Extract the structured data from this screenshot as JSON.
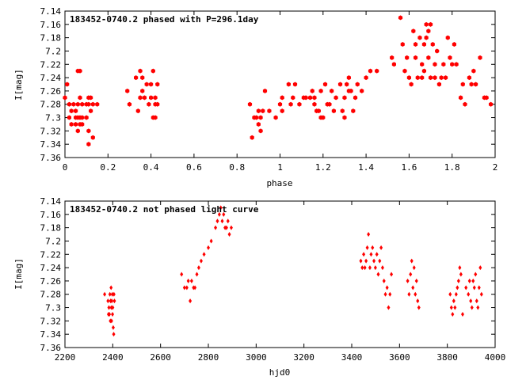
{
  "chart_data": [
    {
      "type": "scatter",
      "title": "183452-0740.2 phased with P=296.1day",
      "xlabel": "phase",
      "ylabel": "I[mag]",
      "xlim": [
        0,
        2
      ],
      "ylim": [
        7.14,
        7.36
      ],
      "y_inverted": true,
      "grid": false,
      "legend": "none",
      "color": "#ff0000",
      "marker": "filled-hexagon",
      "x_ticks": [
        0,
        0.2,
        0.4,
        0.6,
        0.8,
        1,
        1.2,
        1.4,
        1.6,
        1.8,
        2
      ],
      "x_tick_labels": [
        "0",
        "0.2",
        "0.4",
        "0.6",
        "0.8",
        "1",
        "1.2",
        "1.4",
        "1.6",
        "1.8",
        "2"
      ],
      "y_ticks": [
        7.14,
        7.16,
        7.18,
        7.2,
        7.22,
        7.24,
        7.26,
        7.28,
        7.3,
        7.32,
        7.34,
        7.36
      ],
      "y_tick_labels": [
        "7.14",
        "7.16",
        "7.18",
        "7.2",
        "7.22",
        "7.24",
        "7.26",
        "7.28",
        "7.3",
        "7.32",
        "7.34",
        "7.36"
      ],
      "points": [
        [
          0.0,
          7.27
        ],
        [
          0.01,
          7.25
        ],
        [
          0.02,
          7.3
        ],
        [
          0.02,
          7.28
        ],
        [
          0.03,
          7.29
        ],
        [
          0.03,
          7.31
        ],
        [
          0.04,
          7.28
        ],
        [
          0.05,
          7.3
        ],
        [
          0.05,
          7.31
        ],
        [
          0.05,
          7.29
        ],
        [
          0.06,
          7.3
        ],
        [
          0.06,
          7.32
        ],
        [
          0.06,
          7.23
        ],
        [
          0.06,
          7.28
        ],
        [
          0.07,
          7.3
        ],
        [
          0.07,
          7.27
        ],
        [
          0.07,
          7.31
        ],
        [
          0.08,
          7.28
        ],
        [
          0.08,
          7.31
        ],
        [
          0.08,
          7.3
        ],
        [
          0.07,
          7.23
        ],
        [
          0.1,
          7.28
        ],
        [
          0.1,
          7.3
        ],
        [
          0.11,
          7.28
        ],
        [
          0.11,
          7.32
        ],
        [
          0.11,
          7.34
        ],
        [
          0.12,
          7.29
        ],
        [
          0.12,
          7.27
        ],
        [
          0.13,
          7.28
        ],
        [
          0.13,
          7.33
        ],
        [
          0.11,
          7.27
        ],
        [
          0.15,
          7.28
        ],
        [
          0.29,
          7.26
        ],
        [
          0.3,
          7.28
        ],
        [
          0.33,
          7.24
        ],
        [
          0.34,
          7.29
        ],
        [
          0.35,
          7.27
        ],
        [
          0.35,
          7.23
        ],
        [
          0.36,
          7.26
        ],
        [
          0.36,
          7.24
        ],
        [
          0.37,
          7.27
        ],
        [
          0.38,
          7.25
        ],
        [
          0.39,
          7.28
        ],
        [
          0.4,
          7.27
        ],
        [
          0.4,
          7.25
        ],
        [
          0.41,
          7.23
        ],
        [
          0.41,
          7.3
        ],
        [
          0.42,
          7.27
        ],
        [
          0.42,
          7.28
        ],
        [
          0.42,
          7.3
        ],
        [
          0.43,
          7.25
        ],
        [
          0.43,
          7.28
        ],
        [
          0.86,
          7.28
        ],
        [
          0.87,
          7.33
        ],
        [
          0.88,
          7.3
        ],
        [
          0.89,
          7.3
        ],
        [
          0.9,
          7.31
        ],
        [
          0.9,
          7.29
        ],
        [
          0.91,
          7.32
        ],
        [
          0.91,
          7.3
        ],
        [
          0.92,
          7.29
        ],
        [
          0.93,
          7.26
        ],
        [
          0.95,
          7.29
        ],
        [
          0.98,
          7.3
        ],
        [
          1.0,
          7.28
        ],
        [
          1.01,
          7.29
        ],
        [
          1.01,
          7.27
        ],
        [
          1.04,
          7.25
        ],
        [
          1.05,
          7.28
        ],
        [
          1.06,
          7.27
        ],
        [
          1.07,
          7.25
        ],
        [
          1.09,
          7.28
        ],
        [
          1.11,
          7.27
        ],
        [
          1.12,
          7.27
        ],
        [
          1.14,
          7.27
        ],
        [
          1.15,
          7.26
        ],
        [
          1.16,
          7.27
        ],
        [
          1.16,
          7.28
        ],
        [
          1.17,
          7.29
        ],
        [
          1.18,
          7.29
        ],
        [
          1.19,
          7.26
        ],
        [
          1.19,
          7.3
        ],
        [
          1.2,
          7.3
        ],
        [
          1.21,
          7.25
        ],
        [
          1.22,
          7.28
        ],
        [
          1.23,
          7.28
        ],
        [
          1.24,
          7.26
        ],
        [
          1.25,
          7.29
        ],
        [
          1.26,
          7.27
        ],
        [
          1.28,
          7.25
        ],
        [
          1.29,
          7.29
        ],
        [
          1.3,
          7.3
        ],
        [
          1.3,
          7.27
        ],
        [
          1.31,
          7.25
        ],
        [
          1.32,
          7.24
        ],
        [
          1.32,
          7.26
        ],
        [
          1.33,
          7.26
        ],
        [
          1.34,
          7.29
        ],
        [
          1.35,
          7.27
        ],
        [
          1.36,
          7.25
        ],
        [
          1.38,
          7.26
        ],
        [
          1.4,
          7.24
        ],
        [
          1.42,
          7.23
        ],
        [
          1.45,
          7.23
        ],
        [
          1.52,
          7.21
        ],
        [
          1.53,
          7.22
        ],
        [
          1.56,
          7.15
        ],
        [
          1.57,
          7.19
        ],
        [
          1.58,
          7.23
        ],
        [
          1.59,
          7.21
        ],
        [
          1.6,
          7.24
        ],
        [
          1.61,
          7.25
        ],
        [
          1.62,
          7.17
        ],
        [
          1.63,
          7.19
        ],
        [
          1.63,
          7.21
        ],
        [
          1.64,
          7.24
        ],
        [
          1.65,
          7.18
        ],
        [
          1.66,
          7.22
        ],
        [
          1.66,
          7.24
        ],
        [
          1.67,
          7.19
        ],
        [
          1.67,
          7.23
        ],
        [
          1.68,
          7.16
        ],
        [
          1.68,
          7.18
        ],
        [
          1.69,
          7.17
        ],
        [
          1.69,
          7.21
        ],
        [
          1.7,
          7.16
        ],
        [
          1.7,
          7.24
        ],
        [
          1.71,
          7.19
        ],
        [
          1.72,
          7.22
        ],
        [
          1.72,
          7.24
        ],
        [
          1.73,
          7.2
        ],
        [
          1.74,
          7.25
        ],
        [
          1.75,
          7.24
        ],
        [
          1.76,
          7.22
        ],
        [
          1.77,
          7.24
        ],
        [
          1.78,
          7.18
        ],
        [
          1.79,
          7.21
        ],
        [
          1.8,
          7.22
        ],
        [
          1.81,
          7.19
        ],
        [
          1.82,
          7.22
        ],
        [
          1.84,
          7.27
        ],
        [
          1.85,
          7.25
        ],
        [
          1.86,
          7.28
        ],
        [
          1.88,
          7.24
        ],
        [
          1.89,
          7.25
        ],
        [
          1.9,
          7.23
        ],
        [
          1.91,
          7.25
        ],
        [
          1.93,
          7.21
        ],
        [
          1.95,
          7.27
        ],
        [
          1.96,
          7.27
        ],
        [
          1.98,
          7.28
        ]
      ]
    },
    {
      "type": "scatter",
      "title": "183452-0740.2 not phased light curve",
      "xlabel": "hjd0",
      "ylabel": "I[mag]",
      "xlim": [
        2200,
        4000
      ],
      "ylim": [
        7.14,
        7.36
      ],
      "y_inverted": true,
      "grid": false,
      "legend": "none",
      "color": "#ff0000",
      "marker": "diamond",
      "x_ticks": [
        2200,
        2400,
        2600,
        2800,
        3000,
        3200,
        3400,
        3600,
        3800,
        4000
      ],
      "x_tick_labels": [
        "2200",
        "2400",
        "2600",
        "2800",
        "3000",
        "3200",
        "3400",
        "3600",
        "3800",
        "4000"
      ],
      "y_ticks": [
        7.14,
        7.16,
        7.18,
        7.2,
        7.22,
        7.24,
        7.26,
        7.28,
        7.3,
        7.32,
        7.34,
        7.36
      ],
      "y_tick_labels": [
        "7.14",
        "7.16",
        "7.18",
        "7.2",
        "7.22",
        "7.24",
        "7.26",
        "7.28",
        "7.3",
        "7.32",
        "7.34",
        "7.36"
      ],
      "points": [
        [
          2366,
          7.28
        ],
        [
          2380,
          7.29
        ],
        [
          2382,
          7.31
        ],
        [
          2384,
          7.3
        ],
        [
          2386,
          7.31
        ],
        [
          2388,
          7.28
        ],
        [
          2390,
          7.32
        ],
        [
          2391,
          7.29
        ],
        [
          2393,
          7.27
        ],
        [
          2394,
          7.3
        ],
        [
          2395,
          7.32
        ],
        [
          2396,
          7.29
        ],
        [
          2398,
          7.28
        ],
        [
          2399,
          7.31
        ],
        [
          2400,
          7.3
        ],
        [
          2402,
          7.33
        ],
        [
          2404,
          7.34
        ],
        [
          2405,
          7.28
        ],
        [
          2407,
          7.29
        ],
        [
          2688,
          7.25
        ],
        [
          2700,
          7.27
        ],
        [
          2710,
          7.27
        ],
        [
          2716,
          7.26
        ],
        [
          2724,
          7.29
        ],
        [
          2730,
          7.26
        ],
        [
          2738,
          7.27
        ],
        [
          2744,
          7.27
        ],
        [
          2752,
          7.25
        ],
        [
          2760,
          7.24
        ],
        [
          2770,
          7.23
        ],
        [
          2782,
          7.22
        ],
        [
          2800,
          7.21
        ],
        [
          2812,
          7.2
        ],
        [
          2830,
          7.18
        ],
        [
          2838,
          7.17
        ],
        [
          2846,
          7.16
        ],
        [
          2852,
          7.15
        ],
        [
          2858,
          7.17
        ],
        [
          2864,
          7.16
        ],
        [
          2870,
          7.18
        ],
        [
          2876,
          7.18
        ],
        [
          2882,
          7.17
        ],
        [
          2888,
          7.19
        ],
        [
          2896,
          7.18
        ],
        [
          3438,
          7.23
        ],
        [
          3444,
          7.24
        ],
        [
          3450,
          7.22
        ],
        [
          3455,
          7.24
        ],
        [
          3460,
          7.23
        ],
        [
          3465,
          7.21
        ],
        [
          3470,
          7.19
        ],
        [
          3476,
          7.24
        ],
        [
          3481,
          7.22
        ],
        [
          3487,
          7.21
        ],
        [
          3493,
          7.23
        ],
        [
          3499,
          7.24
        ],
        [
          3505,
          7.22
        ],
        [
          3511,
          7.25
        ],
        [
          3517,
          7.23
        ],
        [
          3523,
          7.21
        ],
        [
          3529,
          7.24
        ],
        [
          3535,
          7.26
        ],
        [
          3541,
          7.28
        ],
        [
          3548,
          7.27
        ],
        [
          3554,
          7.3
        ],
        [
          3560,
          7.28
        ],
        [
          3566,
          7.25
        ],
        [
          3634,
          7.26
        ],
        [
          3640,
          7.28
        ],
        [
          3646,
          7.25
        ],
        [
          3651,
          7.23
        ],
        [
          3656,
          7.27
        ],
        [
          3661,
          7.24
        ],
        [
          3666,
          7.28
        ],
        [
          3671,
          7.26
        ],
        [
          3676,
          7.29
        ],
        [
          3681,
          7.3
        ],
        [
          3812,
          7.28
        ],
        [
          3817,
          7.3
        ],
        [
          3822,
          7.31
        ],
        [
          3827,
          7.29
        ],
        [
          3832,
          7.3
        ],
        [
          3837,
          7.28
        ],
        [
          3842,
          7.27
        ],
        [
          3847,
          7.26
        ],
        [
          3852,
          7.24
        ],
        [
          3857,
          7.25
        ],
        [
          3864,
          7.31
        ],
        [
          3878,
          7.27
        ],
        [
          3888,
          7.28
        ],
        [
          3893,
          7.26
        ],
        [
          3898,
          7.29
        ],
        [
          3903,
          7.3
        ],
        [
          3908,
          7.26
        ],
        [
          3913,
          7.27
        ],
        [
          3918,
          7.25
        ],
        [
          3923,
          7.29
        ],
        [
          3928,
          7.3
        ],
        [
          3933,
          7.27
        ],
        [
          3938,
          7.24
        ],
        [
          3943,
          7.28
        ]
      ]
    }
  ]
}
